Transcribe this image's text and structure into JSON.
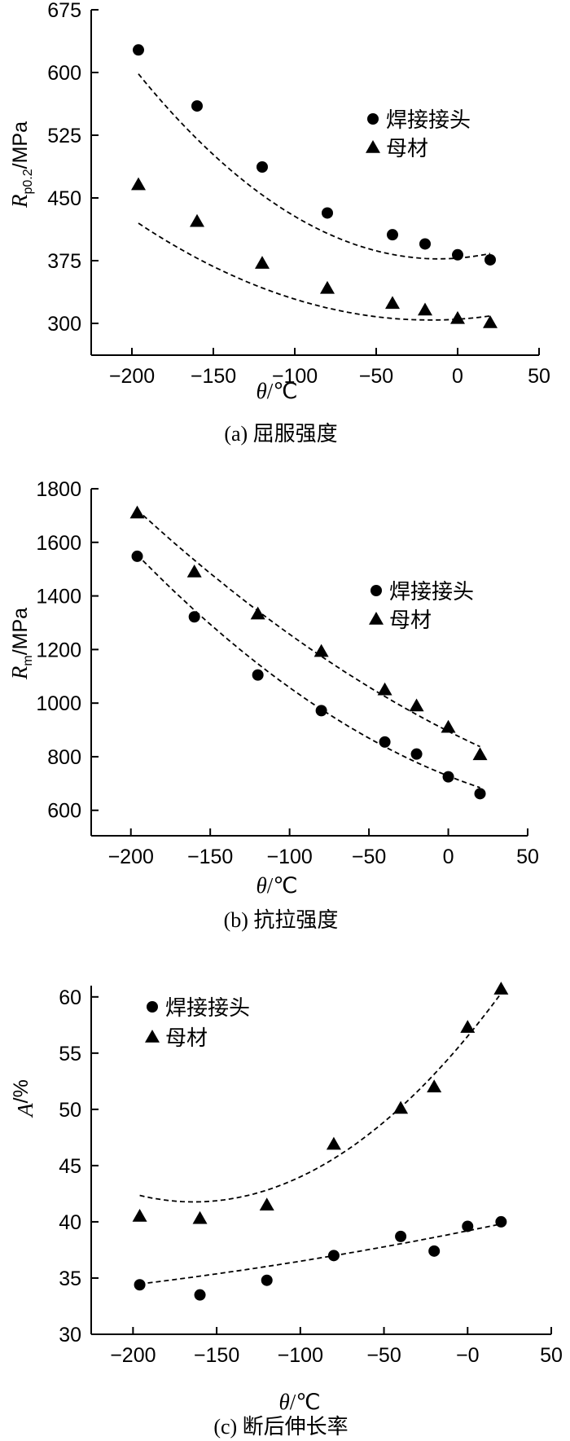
{
  "chart_data": [
    {
      "type": "scatter",
      "caption": "(a) 屈服强度",
      "ylabel": {
        "main": "R",
        "sub": "p0.2",
        "rest": "/MPa"
      },
      "xlabel": {
        "main": "θ",
        "rest": "/℃"
      },
      "xlim": [
        -225,
        50
      ],
      "ylim": [
        262,
        675
      ],
      "xticks": [
        -200,
        -150,
        -100,
        -50,
        0,
        50
      ],
      "xtick_labels": [
        "−200",
        "−150",
        "−100",
        "−50",
        "0",
        "50"
      ],
      "yticks": [
        300,
        375,
        450,
        525,
        600,
        675
      ],
      "ytick_labels": [
        "300",
        "375",
        "450",
        "525",
        "600",
        "675"
      ],
      "legend_position": "right",
      "grid": false,
      "series": [
        {
          "name": "焊接接头",
          "marker": "circle",
          "x": [
            -196,
            -160,
            -120,
            -80,
            -40,
            -20,
            0,
            20
          ],
          "y": [
            627,
            560,
            487,
            432,
            406,
            395,
            382,
            376
          ],
          "fit_coef": [
            378.0,
            0.15,
            0.0065
          ]
        },
        {
          "name": "母材",
          "marker": "triangle",
          "x": [
            -196,
            -160,
            -120,
            -80,
            -40,
            -20,
            0,
            20
          ],
          "y": [
            466,
            422,
            372,
            342,
            324,
            316,
            306,
            301
          ],
          "fit_coef": [
            305.0,
            0.12,
            0.0036
          ]
        }
      ]
    },
    {
      "type": "scatter",
      "caption": "(b) 抗拉强度",
      "ylabel": {
        "main": "R",
        "sub": "m",
        "rest": "/MPa"
      },
      "xlabel": {
        "main": "θ",
        "rest": "/℃"
      },
      "xlim": [
        -225,
        50
      ],
      "ylim": [
        505,
        1800
      ],
      "xticks": [
        -200,
        -150,
        -100,
        -50,
        0,
        50
      ],
      "xtick_labels": [
        "−200",
        "−150",
        "−100",
        "−50",
        "0",
        "50"
      ],
      "yticks": [
        600,
        800,
        1000,
        1200,
        1400,
        1600,
        1800
      ],
      "ytick_labels": [
        "600",
        "800",
        "1000",
        "1200",
        "1400",
        "1600",
        "1800"
      ],
      "legend_position": "right",
      "grid": false,
      "series": [
        {
          "name": "焊接接头",
          "marker": "circle",
          "x": [
            -196,
            -160,
            -120,
            -80,
            -40,
            -20,
            0,
            20
          ],
          "y": [
            1548,
            1322,
            1105,
            972,
            855,
            810,
            725,
            662
          ],
          "fit_coef": [
            728.0,
            -2.35,
            0.0095
          ]
        },
        {
          "name": "母材",
          "marker": "triangle",
          "x": [
            -196,
            -160,
            -120,
            -80,
            -40,
            -20,
            0,
            20
          ],
          "y": [
            1710,
            1490,
            1333,
            1193,
            1050,
            990,
            910,
            808
          ],
          "fit_coef": [
            895.0,
            -3.0,
            0.0062
          ]
        }
      ]
    },
    {
      "type": "scatter",
      "caption": "(c) 断后伸长率",
      "ylabel": {
        "main": "A",
        "sub": "",
        "rest": "/%"
      },
      "xlabel": {
        "main": "θ",
        "rest": "/℃"
      },
      "xlim": [
        -225,
        50
      ],
      "ylim": [
        30,
        61
      ],
      "xticks": [
        -200,
        -150,
        -100,
        -50,
        0,
        50
      ],
      "xtick_labels": [
        "−200",
        "−150",
        "−100",
        "−50",
        "−0",
        "50"
      ],
      "yticks": [
        30,
        35,
        40,
        45,
        50,
        55,
        60
      ],
      "ytick_labels": [
        "30",
        "35",
        "40",
        "45",
        "50",
        "55",
        "60"
      ],
      "legend_position": "top-left",
      "grid": false,
      "series": [
        {
          "name": "焊接接头",
          "marker": "circle",
          "x": [
            -196,
            -160,
            -120,
            -80,
            -40,
            -20,
            0,
            20
          ],
          "y": [
            34.4,
            33.5,
            34.8,
            37.0,
            38.7,
            37.4,
            39.6,
            40.0
          ],
          "fit_coef": [
            39.2,
            0.03,
            3e-05
          ]
        },
        {
          "name": "母材",
          "marker": "triangle",
          "x": [
            -196,
            -160,
            -120,
            -80,
            -40,
            -20,
            0,
            20
          ],
          "y": [
            40.5,
            40.3,
            41.5,
            46.9,
            50.1,
            52.0,
            57.3,
            60.7
          ],
          "fit_coef": [
            56.5,
            0.18,
            0.00055
          ]
        }
      ]
    }
  ]
}
